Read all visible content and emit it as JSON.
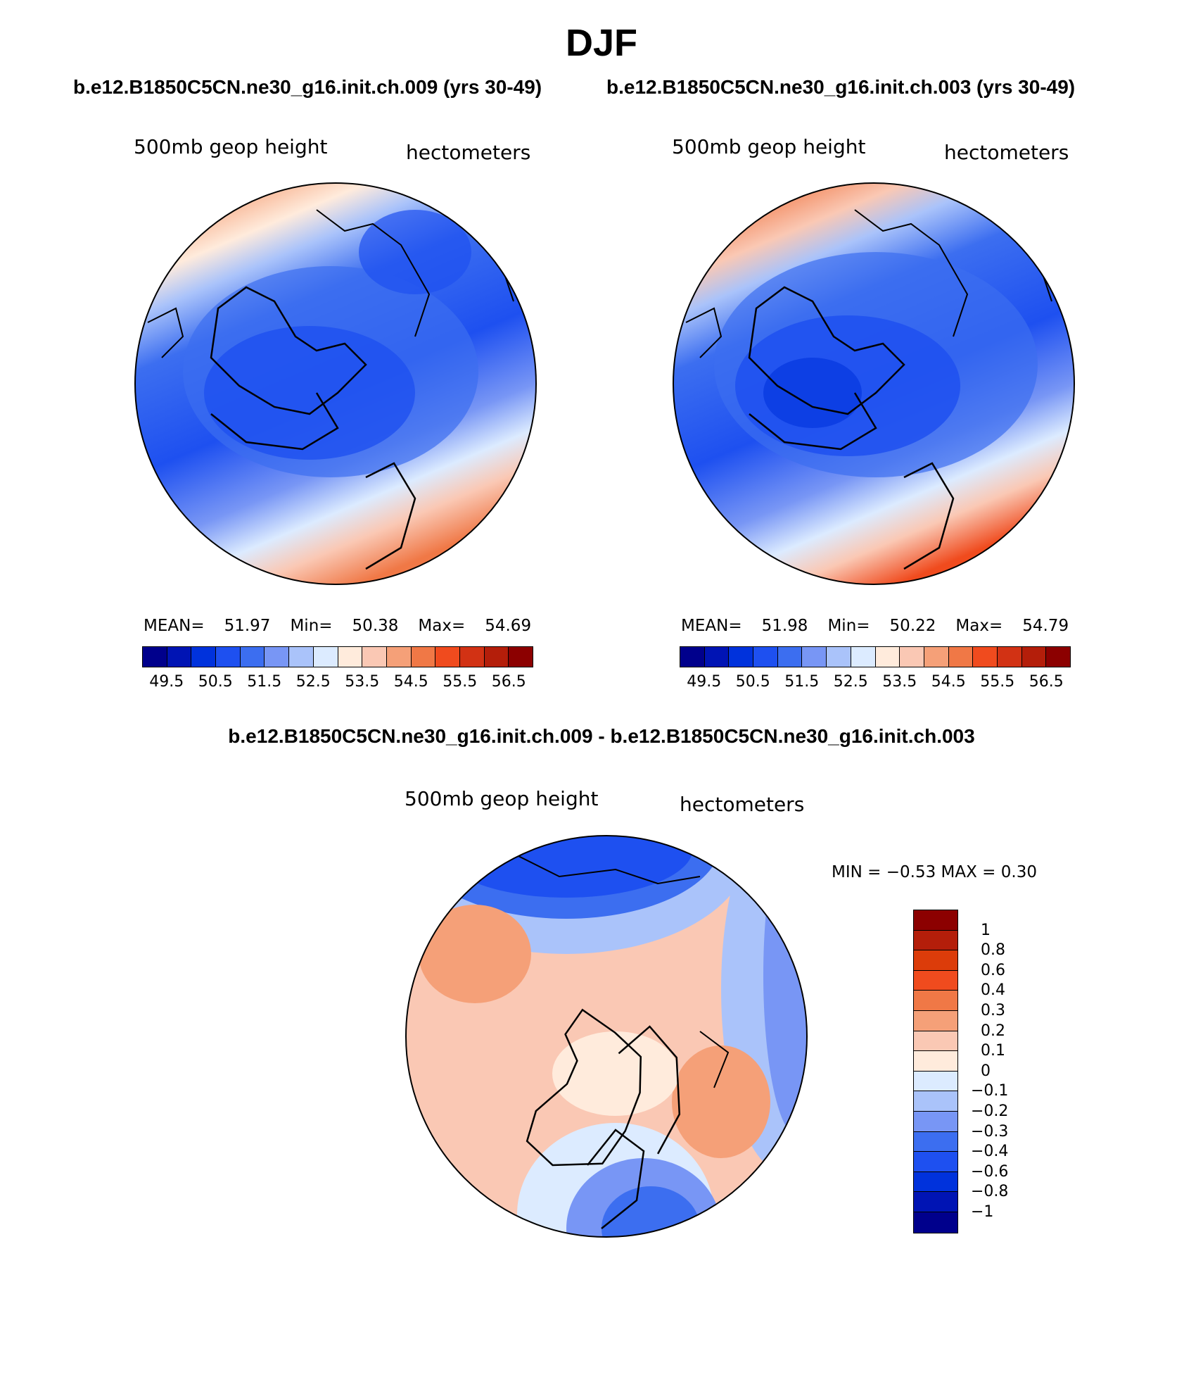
{
  "header": {
    "season": "DJF",
    "left_run": "b.e12.B1850C5CN.ne30_g16.init.ch.009 (yrs 30-49)",
    "right_run": "b.e12.B1850C5CN.ne30_g16.init.ch.003 (yrs 30-49)",
    "diff_title": "b.e12.B1850C5CN.ne30_g16.init.ch.009 - b.e12.B1850C5CN.ne30_g16.init.ch.003"
  },
  "panels": {
    "left": {
      "variable": "500mb geop height",
      "units": "hectometers",
      "mean_label": "MEAN=",
      "mean": "51.97",
      "min_label": "Min=",
      "min": "50.38",
      "max_label": "Max=",
      "max": "54.69"
    },
    "right": {
      "variable": "500mb geop height",
      "units": "hectometers",
      "mean_label": "MEAN=",
      "mean": "51.98",
      "min_label": "Min=",
      "min": "50.22",
      "max_label": "Max=",
      "max": "54.79"
    },
    "diff": {
      "variable": "500mb geop height",
      "units": "hectometers",
      "minmax": "MIN =   −0.53  MAX =    0.30"
    }
  },
  "colorbar_abs": {
    "colors": [
      "#00008c",
      "#0014b4",
      "#0032dc",
      "#1e50f0",
      "#3c6ef0",
      "#7896f5",
      "#aac3fa",
      "#dcebff",
      "#ffebdc",
      "#fac8b4",
      "#f5a078",
      "#f07846",
      "#f04b1e",
      "#d23214",
      "#b41e0a",
      "#8c0000"
    ],
    "labels": [
      "49.5",
      "50.5",
      "51.5",
      "52.5",
      "53.5",
      "54.5",
      "55.5",
      "56.5"
    ]
  },
  "colorbar_diff": {
    "colors": [
      "#8c0000",
      "#b41e0a",
      "#dc3c0a",
      "#f04b1e",
      "#f07846",
      "#f5a078",
      "#fac8b4",
      "#ffebdc",
      "#dcebff",
      "#aac3fa",
      "#7896f5",
      "#3c6ef0",
      "#1e50f0",
      "#0032dc",
      "#0014b4",
      "#00008c"
    ],
    "labels": [
      "1",
      "0.8",
      "0.6",
      "0.4",
      "0.3",
      "0.2",
      "0.1",
      "0",
      "−0.1",
      "−0.2",
      "−0.3",
      "−0.4",
      "−0.6",
      "−0.8",
      "−1"
    ]
  }
}
